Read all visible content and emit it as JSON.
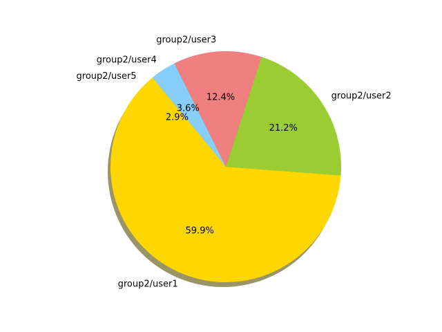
{
  "chart_data": {
    "type": "pie",
    "categories": [
      "group2/user1",
      "group2/user2",
      "group2/user3",
      "group2/user4",
      "group2/user5"
    ],
    "values": [
      59.9,
      21.2,
      12.4,
      3.6,
      2.9
    ],
    "percent_labels": [
      "59.9%",
      "21.2%",
      "12.4%",
      "3.6%",
      "2.9%"
    ],
    "colors": [
      "#ffd700",
      "#9acd32",
      "#f08080",
      "#87cefa",
      "#ffd700"
    ],
    "shadow": true,
    "legend": "none"
  }
}
